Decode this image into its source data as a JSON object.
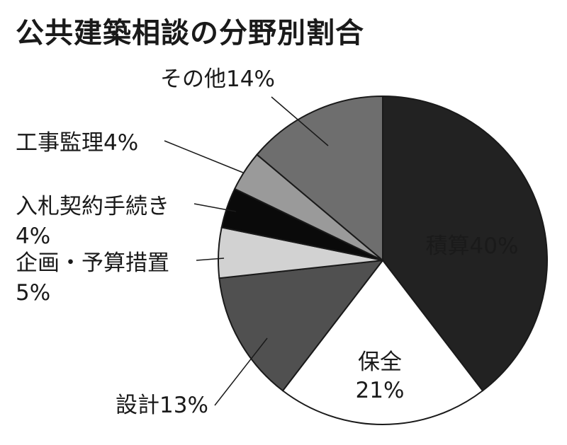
{
  "chart_data": {
    "type": "pie",
    "title": "公共建築相談の分野別割合",
    "slices": [
      {
        "name": "積算",
        "value": 40,
        "label": "積算40%",
        "color": "#222222",
        "text_color": "#ffffff",
        "label_lines": [
          "積算40%"
        ]
      },
      {
        "name": "保全",
        "value": 21,
        "label": "保全\n21%",
        "color": "#ffffff",
        "text_color": "#1a1a1a",
        "label_lines": [
          "保全",
          "21%"
        ]
      },
      {
        "name": "設計",
        "value": 13,
        "label": "設計13%",
        "color": "#505050",
        "text_color": "#1a1a1a",
        "label_lines": [
          "設計13%"
        ]
      },
      {
        "name": "企画・予算措置",
        "value": 5,
        "label": "企画・予算措置\n5%",
        "color": "#d2d2d2",
        "text_color": "#1a1a1a",
        "label_lines": [
          "企画・予算措置",
          "5%"
        ]
      },
      {
        "name": "入札契約手続き",
        "value": 4,
        "label": "入札契約手続き\n4%",
        "color": "#0a0a0a",
        "text_color": "#1a1a1a",
        "label_lines": [
          "入札契約手続き",
          "4%"
        ]
      },
      {
        "name": "工事監理",
        "value": 4,
        "label": "工事監理4%",
        "color": "#9a9a9a",
        "text_color": "#1a1a1a",
        "label_lines": [
          "工事監理4%"
        ]
      },
      {
        "name": "その他",
        "value": 14,
        "label": "その他14%",
        "color": "#6e6e6e",
        "text_color": "#1a1a1a",
        "label_lines": [
          "その他14%"
        ]
      }
    ],
    "start_angle_deg": 0,
    "direction": "clockwise"
  }
}
